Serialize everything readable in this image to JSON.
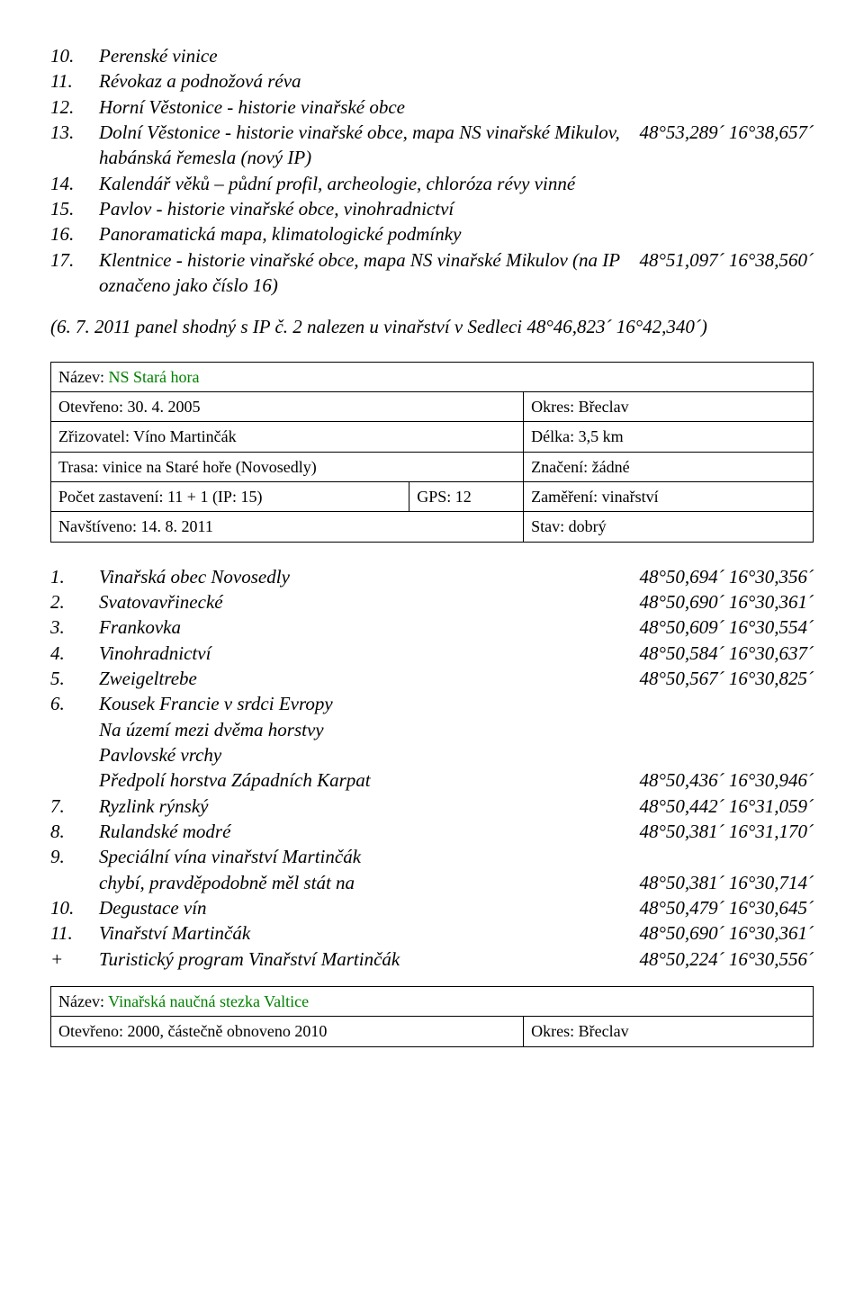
{
  "list1": [
    {
      "n": "10.",
      "t": "Perenské vinice",
      "c": ""
    },
    {
      "n": "11.",
      "t": "Révokaz a podnožová réva",
      "c": ""
    },
    {
      "n": "12.",
      "t": "Horní Věstonice - historie vinařské obce",
      "c": ""
    },
    {
      "n": "13.",
      "t": "Dolní Věstonice - historie vinařské obce, mapa NS vinařské Mikulov, habánská řemesla (nový IP)",
      "c": "48°53,289´ 16°38,657´"
    },
    {
      "n": "14.",
      "t": "Kalendář věků – půdní profil, archeologie, chloróza révy vinné",
      "c": ""
    },
    {
      "n": "15.",
      "t": "Pavlov - historie vinařské obce, vinohradnictví",
      "c": ""
    },
    {
      "n": "16.",
      "t": "Panoramatická mapa, klimatologické podmínky",
      "c": ""
    },
    {
      "n": "17.",
      "t": "Klentnice - historie vinařské obce, mapa NS vinařské Mikulov (na IP označeno jako číslo 16)",
      "c": "48°51,097´ 16°38,560´"
    }
  ],
  "note1": "(6. 7. 2011 panel shodný s IP č. 2 nalezen u vinařství v Sedleci 48°46,823´ 16°42,340´)",
  "table1": {
    "name_label": "Název: ",
    "name_value": "NS Stará hora",
    "opened": "Otevřeno: 30. 4. 2005",
    "district": "Okres: Břeclav",
    "founder": "Zřizovatel: Víno Martinčák",
    "length": "Délka: 3,5 km",
    "route": "Trasa: vinice na Staré hoře (Novosedly)",
    "marking": "Značení: žádné",
    "stops": "Počet zastavení: 11 + 1 (IP: 15)",
    "gps": "GPS: 12",
    "focus": "Zaměření: vinařství",
    "visited": "Navštíveno: 14. 8. 2011",
    "state": "Stav: dobrý"
  },
  "list2": [
    {
      "n": "1.",
      "t": "Vinařská obec Novosedly",
      "c": "48°50,694´ 16°30,356´"
    },
    {
      "n": "2.",
      "t": "Svatovavřinecké",
      "c": "48°50,690´ 16°30,361´"
    },
    {
      "n": "3.",
      "t": "Frankovka",
      "c": "48°50,609´ 16°30,554´"
    },
    {
      "n": "4.",
      "t": "Vinohradnictví",
      "c": "48°50,584´ 16°30,637´"
    },
    {
      "n": "5.",
      "t": "Zweigeltrebe",
      "c": "48°50,567´ 16°30,825´"
    },
    {
      "n": "6.",
      "t": "Kousek Francie v srdci Evropy",
      "c": ""
    }
  ],
  "list2_sub": [
    {
      "t": "Na území mezi dvěma horstvy",
      "c": ""
    },
    {
      "t": "Pavlovské vrchy",
      "c": ""
    },
    {
      "t": "Předpolí horstva Západních Karpat",
      "c": "48°50,436´ 16°30,946´"
    }
  ],
  "list2b": [
    {
      "n": "7.",
      "t": "Ryzlink rýnský",
      "c": "48°50,442´ 16°31,059´"
    },
    {
      "n": "8.",
      "t": "Rulandské modré",
      "c": "48°50,381´ 16°31,170´"
    },
    {
      "n": "9.",
      "t": "Speciální vína vinařství Martinčák",
      "c": ""
    }
  ],
  "list2b_sub": {
    "t": "chybí, pravděpodobně měl stát na",
    "c": "48°50,381´ 16°30,714´"
  },
  "list2c": [
    {
      "n": "10.",
      "t": "Degustace vín",
      "c": "48°50,479´ 16°30,645´"
    },
    {
      "n": "11.",
      "t": "Vinařství Martinčák",
      "c": "48°50,690´ 16°30,361´"
    },
    {
      "n": "+",
      "t": "Turistický program Vinařství Martinčák",
      "c": "48°50,224´ 16°30,556´"
    }
  ],
  "table2": {
    "name_label": "Název: ",
    "name_value": "Vinařská naučná stezka Valtice",
    "opened": "Otevřeno: 2000, částečně obnoveno 2010",
    "district": "Okres: Břeclav"
  }
}
